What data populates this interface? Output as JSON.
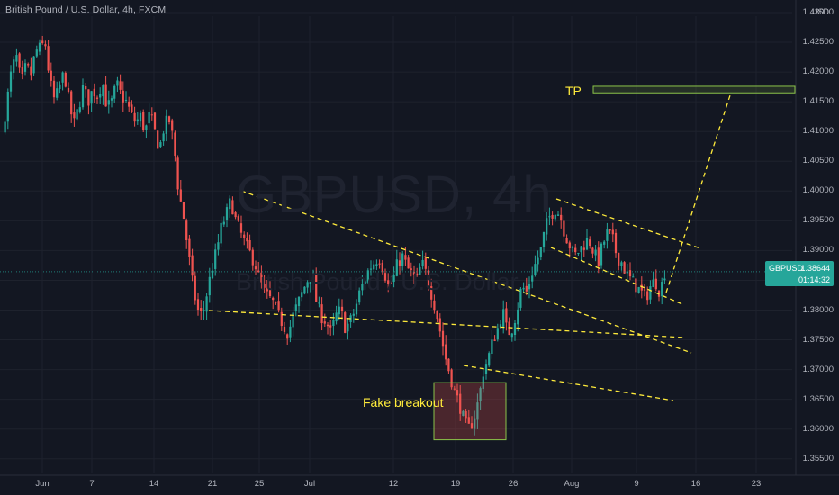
{
  "chart_data": {
    "type": "candlestick",
    "title": "British Pound / U.S. Dollar, 4h, FXCM",
    "watermark_symbol": "GBPUSD, 4h",
    "watermark_description": "British Pound / U.S. Dollar",
    "currency_label": "USD",
    "y_axis": {
      "ticks": [
        "1.43000",
        "1.42500",
        "1.42000",
        "1.41500",
        "1.41000",
        "1.40500",
        "1.40000",
        "1.39500",
        "1.39000",
        "1.38500",
        "1.38000",
        "1.37500",
        "1.37000",
        "1.36500",
        "1.36000",
        "1.35500"
      ],
      "range": [
        1.3525,
        1.4325
      ],
      "position": "right"
    },
    "x_axis": {
      "ticks": [
        "Jun",
        "7",
        "14",
        "21",
        "25",
        "Jul",
        "12",
        "19",
        "26",
        "Aug",
        "9",
        "16",
        "23"
      ]
    },
    "price_line": {
      "value": 1.38644
    },
    "price_tag": {
      "symbol": "GBPUSD",
      "price": "1.38644",
      "countdown": "01:14:32"
    },
    "price_path": [
      [
        0,
        1.4095
      ],
      [
        1,
        1.415
      ],
      [
        2,
        1.4205
      ],
      [
        3,
        1.4225
      ],
      [
        4,
        1.418
      ],
      [
        5,
        1.421
      ],
      [
        6,
        1.4195
      ],
      [
        7,
        1.4235
      ],
      [
        8,
        1.424
      ],
      [
        9,
        1.425
      ],
      [
        10,
        1.4185
      ],
      [
        11,
        1.415
      ],
      [
        12,
        1.4175
      ],
      [
        13,
        1.42
      ],
      [
        14,
        1.415
      ],
      [
        15,
        1.411
      ],
      [
        16,
        1.414
      ],
      [
        17,
        1.4175
      ],
      [
        18,
        1.415
      ],
      [
        19,
        1.417
      ],
      [
        20,
        1.416
      ],
      [
        21,
        1.4185
      ],
      [
        22,
        1.414
      ],
      [
        23,
        1.415
      ],
      [
        24,
        1.418
      ],
      [
        25,
        1.416
      ],
      [
        26,
        1.415
      ],
      [
        27,
        1.413
      ],
      [
        28,
        1.4115
      ],
      [
        29,
        1.4125
      ],
      [
        30,
        1.41
      ],
      [
        31,
        1.413
      ],
      [
        32,
        1.41
      ],
      [
        33,
        1.407
      ],
      [
        34,
        1.411
      ],
      [
        35,
        1.412
      ],
      [
        36,
        1.408
      ],
      [
        37,
        1.4
      ],
      [
        38,
        1.396
      ],
      [
        39,
        1.39
      ],
      [
        40,
        1.384
      ],
      [
        41,
        1.38
      ],
      [
        42,
        1.379
      ],
      [
        43,
        1.383
      ],
      [
        44,
        1.387
      ],
      [
        45,
        1.39
      ],
      [
        46,
        1.394
      ],
      [
        47,
        1.396
      ],
      [
        48,
        1.3985
      ],
      [
        49,
        1.395
      ],
      [
        50,
        1.393
      ],
      [
        51,
        1.391
      ],
      [
        52,
        1.3895
      ],
      [
        53,
        1.388
      ],
      [
        54,
        1.385
      ],
      [
        55,
        1.383
      ],
      [
        56,
        1.382
      ],
      [
        57,
        1.381
      ],
      [
        58,
        1.379
      ],
      [
        59,
        1.3775
      ],
      [
        60,
        1.376
      ],
      [
        61,
        1.379
      ],
      [
        62,
        1.381
      ],
      [
        63,
        1.383
      ],
      [
        64,
        1.385
      ],
      [
        65,
        1.386
      ],
      [
        66,
        1.381
      ],
      [
        67,
        1.379
      ],
      [
        68,
        1.378
      ],
      [
        69,
        1.376
      ],
      [
        70,
        1.379
      ],
      [
        71,
        1.38
      ],
      [
        72,
        1.377
      ],
      [
        73,
        1.378
      ],
      [
        74,
        1.38
      ],
      [
        75,
        1.383
      ],
      [
        76,
        1.385
      ],
      [
        77,
        1.387
      ],
      [
        78,
        1.388
      ],
      [
        79,
        1.389
      ],
      [
        80,
        1.387
      ],
      [
        81,
        1.384
      ],
      [
        82,
        1.385
      ],
      [
        83,
        1.388
      ],
      [
        84,
        1.389
      ],
      [
        85,
        1.387
      ],
      [
        86,
        1.386
      ],
      [
        87,
        1.385
      ],
      [
        88,
        1.388
      ],
      [
        89,
        1.386
      ],
      [
        90,
        1.383
      ],
      [
        91,
        1.38
      ],
      [
        92,
        1.376
      ],
      [
        93,
        1.372
      ],
      [
        94,
        1.369
      ],
      [
        95,
        1.366
      ],
      [
        96,
        1.364
      ],
      [
        97,
        1.361
      ],
      [
        98,
        1.36
      ],
      [
        99,
        1.362
      ],
      [
        100,
        1.365
      ],
      [
        101,
        1.37
      ],
      [
        102,
        1.372
      ],
      [
        103,
        1.375
      ],
      [
        104,
        1.377
      ],
      [
        105,
        1.38
      ],
      [
        106,
        1.376
      ],
      [
        107,
        1.377
      ],
      [
        108,
        1.38
      ],
      [
        109,
        1.384
      ],
      [
        110,
        1.383
      ],
      [
        111,
        1.386
      ],
      [
        112,
        1.388
      ],
      [
        113,
        1.39
      ],
      [
        114,
        1.394
      ],
      [
        115,
        1.396
      ],
      [
        116,
        1.397
      ],
      [
        117,
        1.396
      ],
      [
        118,
        1.393
      ],
      [
        119,
        1.391
      ],
      [
        120,
        1.389
      ],
      [
        121,
        1.39
      ],
      [
        122,
        1.391
      ],
      [
        123,
        1.392
      ],
      [
        124,
        1.39
      ],
      [
        125,
        1.388
      ],
      [
        126,
        1.391
      ],
      [
        127,
        1.393
      ],
      [
        128,
        1.392
      ],
      [
        129,
        1.389
      ],
      [
        130,
        1.388
      ],
      [
        131,
        1.386
      ],
      [
        132,
        1.385
      ],
      [
        133,
        1.384
      ],
      [
        134,
        1.383
      ],
      [
        135,
        1.382
      ],
      [
        136,
        1.384
      ],
      [
        137,
        1.385
      ],
      [
        138,
        1.383
      ],
      [
        139,
        1.3864
      ]
    ],
    "annotations": {
      "tp_label": "TP",
      "fake_breakout_label": "Fake breakout",
      "tp_zone": {
        "y_range": [
          1.4165,
          1.4176
        ]
      },
      "fake_breakout_zone": {
        "y_range": [
          1.3582,
          1.3678
        ]
      }
    }
  },
  "colors": {
    "background": "#131722",
    "up": "#26a69a",
    "down": "#ef5350",
    "annotation": "#ffeb3b",
    "zone_border": "#8bc34a",
    "price_tag": "#26a69a"
  }
}
